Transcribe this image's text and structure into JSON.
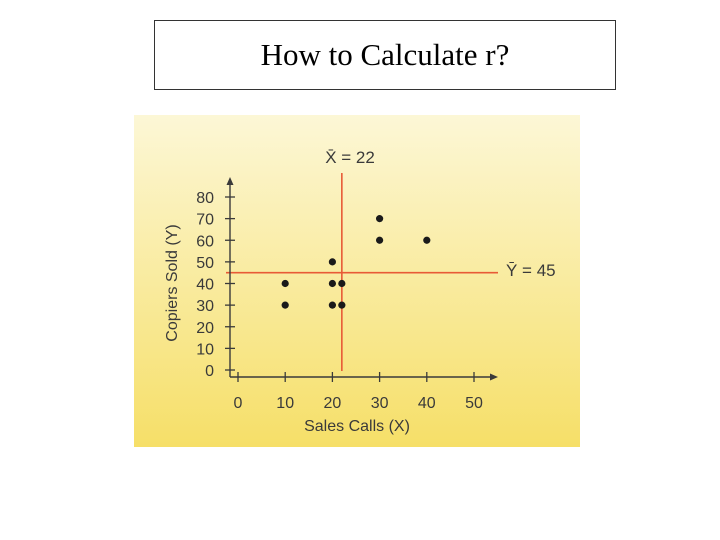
{
  "slide": {
    "title": "How to Calculate r?"
  },
  "colors": {
    "panel_light": "#fcf7d6",
    "panel_yellow": "#f6df68",
    "ink": "#3a3a3a",
    "mean_line": "#e85a36"
  },
  "chart_data": {
    "type": "scatter",
    "title": "",
    "xlabel": "Sales Calls (X)",
    "ylabel": "Copiers Sold (Y)",
    "xlim": [
      0,
      50
    ],
    "ylim": [
      0,
      80
    ],
    "x_ticks": [
      "0",
      "10",
      "20",
      "30",
      "40",
      "50"
    ],
    "y_ticks": [
      "0",
      "10",
      "20",
      "30",
      "40",
      "50",
      "60",
      "70",
      "80"
    ],
    "x_tick_values": [
      0,
      10,
      20,
      30,
      40,
      50
    ],
    "y_tick_values": [
      0,
      10,
      20,
      30,
      40,
      50,
      60,
      70,
      80
    ],
    "points": [
      {
        "x": 10,
        "y": 40
      },
      {
        "x": 10,
        "y": 30
      },
      {
        "x": 20,
        "y": 50
      },
      {
        "x": 20,
        "y": 40
      },
      {
        "x": 22,
        "y": 40
      },
      {
        "x": 20,
        "y": 30
      },
      {
        "x": 22,
        "y": 30
      },
      {
        "x": 30,
        "y": 70
      },
      {
        "x": 30,
        "y": 60
      },
      {
        "x": 40,
        "y": 60
      }
    ],
    "mean_x": {
      "value": 22,
      "label": "X̄ = 22"
    },
    "mean_y": {
      "value": 45,
      "label": "Ȳ = 45"
    },
    "grid": false,
    "legend": "none"
  }
}
